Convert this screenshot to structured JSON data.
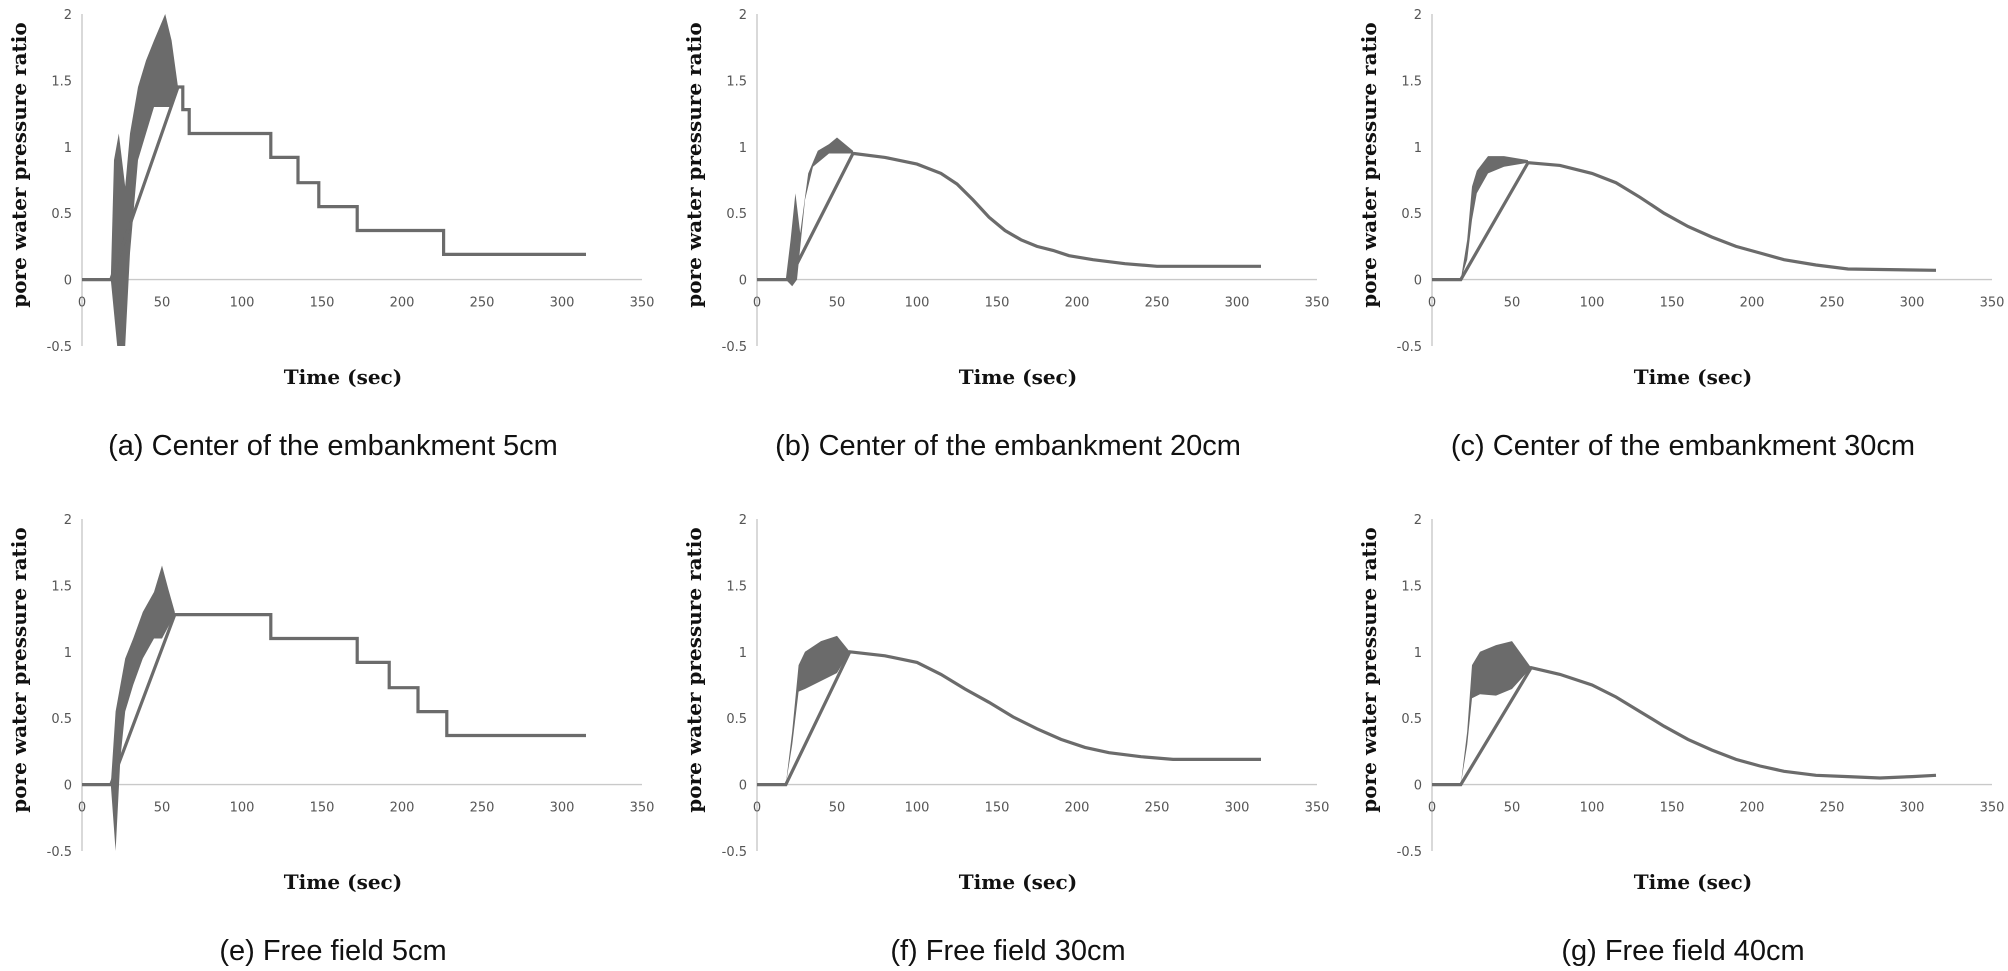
{
  "chart_data": [
    {
      "type": "line",
      "caption": "(a) Center of the embankment 5cm",
      "xlabel": "Time (sec)",
      "ylabel": "pore water pressure ratio",
      "xlim": [
        0,
        350
      ],
      "ylim": [
        -0.5,
        2
      ],
      "xticks": [
        0,
        50,
        100,
        150,
        200,
        250,
        300,
        350
      ],
      "yticks": [
        2,
        1.5,
        1,
        0.5,
        0,
        -0.5
      ],
      "ytick_labels": [
        "2",
        "1.5",
        "1",
        "0.5",
        "0",
        "-0.5"
      ],
      "band": {
        "lower": [
          [
            18,
            0
          ],
          [
            22,
            -0.5
          ],
          [
            27,
            -0.5
          ],
          [
            30,
            0.2
          ],
          [
            35,
            0.9
          ],
          [
            40,
            1.1
          ],
          [
            45,
            1.3
          ],
          [
            55,
            1.3
          ],
          [
            60,
            1.45
          ]
        ],
        "upper": [
          [
            18,
            0
          ],
          [
            20,
            0.9
          ],
          [
            23,
            1.1
          ],
          [
            27,
            0.7
          ],
          [
            30,
            1.1
          ],
          [
            35,
            1.45
          ],
          [
            40,
            1.65
          ],
          [
            45,
            1.8
          ],
          [
            52,
            2.0
          ],
          [
            56,
            1.8
          ],
          [
            60,
            1.45
          ]
        ]
      },
      "series": [
        {
          "values": [
            [
              0,
              0
            ],
            [
              18,
              0
            ],
            [
              60,
              1.45
            ],
            [
              63,
              1.45
            ],
            [
              63,
              1.28
            ],
            [
              67,
              1.28
            ],
            [
              67,
              1.1
            ],
            [
              118,
              1.1
            ],
            [
              118,
              0.92
            ],
            [
              135,
              0.92
            ],
            [
              135,
              0.73
            ],
            [
              148,
              0.73
            ],
            [
              148,
              0.55
            ],
            [
              172,
              0.55
            ],
            [
              172,
              0.37
            ],
            [
              226,
              0.37
            ],
            [
              226,
              0.19
            ],
            [
              315,
              0.19
            ]
          ]
        }
      ]
    },
    {
      "type": "line",
      "caption": "(b) Center of the embankment 20cm",
      "xlabel": "Time (sec)",
      "ylabel": "pore water pressure ratio",
      "xlim": [
        0,
        350
      ],
      "ylim": [
        -0.5,
        2
      ],
      "xticks": [
        0,
        50,
        100,
        150,
        200,
        250,
        300,
        350
      ],
      "yticks": [
        2,
        1.5,
        1,
        0.5,
        0,
        -0.5
      ],
      "ytick_labels": [
        "2",
        "1.5",
        "1",
        "0.5",
        "0",
        "-0.5"
      ],
      "band": {
        "lower": [
          [
            18,
            0
          ],
          [
            22,
            -0.05
          ],
          [
            25,
            0
          ],
          [
            30,
            0.6
          ],
          [
            35,
            0.85
          ],
          [
            45,
            0.95
          ],
          [
            60,
            0.95
          ]
        ],
        "upper": [
          [
            18,
            0
          ],
          [
            21,
            0.3
          ],
          [
            24,
            0.65
          ],
          [
            27,
            0.35
          ],
          [
            32,
            0.8
          ],
          [
            38,
            0.97
          ],
          [
            45,
            1.02
          ],
          [
            50,
            1.07
          ],
          [
            60,
            0.97
          ]
        ]
      },
      "series": [
        {
          "values": [
            [
              0,
              0
            ],
            [
              20,
              0
            ],
            [
              60,
              0.95
            ],
            [
              80,
              0.92
            ],
            [
              100,
              0.87
            ],
            [
              115,
              0.8
            ],
            [
              125,
              0.72
            ],
            [
              135,
              0.6
            ],
            [
              145,
              0.47
            ],
            [
              155,
              0.37
            ],
            [
              165,
              0.3
            ],
            [
              175,
              0.25
            ],
            [
              185,
              0.22
            ],
            [
              195,
              0.18
            ],
            [
              210,
              0.15
            ],
            [
              230,
              0.12
            ],
            [
              250,
              0.1
            ],
            [
              315,
              0.1
            ]
          ]
        }
      ]
    },
    {
      "type": "line",
      "caption": "(c) Center of the  embankment 30cm",
      "xlabel": "Time (sec)",
      "ylabel": "pore water pressure ratio",
      "xlim": [
        0,
        350
      ],
      "ylim": [
        -0.5,
        2
      ],
      "xticks": [
        0,
        50,
        100,
        150,
        200,
        250,
        300,
        350
      ],
      "yticks": [
        2,
        1.5,
        1,
        0.5,
        0,
        -0.5
      ],
      "ytick_labels": [
        "2",
        "1.5",
        "1",
        "0.5",
        "0",
        "-0.5"
      ],
      "band": {
        "lower": [
          [
            18,
            0
          ],
          [
            22,
            0.15
          ],
          [
            25,
            0.45
          ],
          [
            28,
            0.65
          ],
          [
            35,
            0.8
          ],
          [
            45,
            0.85
          ],
          [
            60,
            0.88
          ]
        ],
        "upper": [
          [
            18,
            0
          ],
          [
            22,
            0.3
          ],
          [
            25,
            0.7
          ],
          [
            28,
            0.82
          ],
          [
            35,
            0.93
          ],
          [
            45,
            0.93
          ],
          [
            60,
            0.9
          ]
        ]
      },
      "series": [
        {
          "values": [
            [
              0,
              0
            ],
            [
              18,
              0
            ],
            [
              60,
              0.88
            ],
            [
              80,
              0.86
            ],
            [
              100,
              0.8
            ],
            [
              115,
              0.73
            ],
            [
              130,
              0.62
            ],
            [
              145,
              0.5
            ],
            [
              160,
              0.4
            ],
            [
              175,
              0.32
            ],
            [
              190,
              0.25
            ],
            [
              205,
              0.2
            ],
            [
              220,
              0.15
            ],
            [
              240,
              0.11
            ],
            [
              260,
              0.08
            ],
            [
              315,
              0.07
            ]
          ]
        }
      ]
    },
    {
      "type": "line",
      "caption": "(e) Free field 5cm",
      "xlabel": "Time (sec)",
      "ylabel": "pore water pressure ratio",
      "xlim": [
        0,
        350
      ],
      "ylim": [
        -0.5,
        2
      ],
      "xticks": [
        0,
        50,
        100,
        150,
        200,
        250,
        300,
        350
      ],
      "yticks": [
        2,
        1.5,
        1,
        0.5,
        0,
        -0.5
      ],
      "ytick_labels": [
        "2",
        "1.5",
        "1",
        "0.5",
        "0",
        "-0.5"
      ],
      "band": {
        "lower": [
          [
            18,
            0
          ],
          [
            21,
            -0.5
          ],
          [
            24,
            0.2
          ],
          [
            27,
            0.55
          ],
          [
            32,
            0.75
          ],
          [
            38,
            0.95
          ],
          [
            45,
            1.1
          ],
          [
            50,
            1.1
          ],
          [
            58,
            1.28
          ]
        ],
        "upper": [
          [
            18,
            0
          ],
          [
            21,
            0.55
          ],
          [
            24,
            0.75
          ],
          [
            27,
            0.95
          ],
          [
            32,
            1.1
          ],
          [
            38,
            1.3
          ],
          [
            45,
            1.45
          ],
          [
            50,
            1.65
          ],
          [
            54,
            1.47
          ],
          [
            58,
            1.3
          ]
        ]
      },
      "series": [
        {
          "values": [
            [
              0,
              0
            ],
            [
              18,
              0
            ],
            [
              58,
              1.28
            ],
            [
              118,
              1.28
            ],
            [
              118,
              1.1
            ],
            [
              172,
              1.1
            ],
            [
              172,
              0.92
            ],
            [
              192,
              0.92
            ],
            [
              192,
              0.73
            ],
            [
              210,
              0.73
            ],
            [
              210,
              0.55
            ],
            [
              228,
              0.55
            ],
            [
              228,
              0.37
            ],
            [
              315,
              0.37
            ]
          ]
        }
      ]
    },
    {
      "type": "line",
      "caption": "(f) Free field 30cm",
      "xlabel": "Time (sec)",
      "ylabel": "pore water pressure ratio",
      "xlim": [
        0,
        350
      ],
      "ylim": [
        -0.5,
        2
      ],
      "xticks": [
        0,
        50,
        100,
        150,
        200,
        250,
        300,
        350
      ],
      "yticks": [
        2,
        1.5,
        1,
        0.5,
        0,
        -0.5
      ],
      "ytick_labels": [
        "2",
        "1.5",
        "1",
        "0.5",
        "0",
        "-0.5"
      ],
      "band": {
        "lower": [
          [
            18,
            0
          ],
          [
            22,
            0.3
          ],
          [
            26,
            0.7
          ],
          [
            30,
            0.72
          ],
          [
            40,
            0.78
          ],
          [
            50,
            0.84
          ],
          [
            58,
            1.0
          ]
        ],
        "upper": [
          [
            18,
            0
          ],
          [
            22,
            0.4
          ],
          [
            26,
            0.9
          ],
          [
            30,
            1.0
          ],
          [
            40,
            1.08
          ],
          [
            50,
            1.12
          ],
          [
            58,
            1.0
          ]
        ]
      },
      "series": [
        {
          "values": [
            [
              0,
              0
            ],
            [
              18,
              0
            ],
            [
              58,
              1.0
            ],
            [
              80,
              0.97
            ],
            [
              100,
              0.92
            ],
            [
              115,
              0.83
            ],
            [
              130,
              0.72
            ],
            [
              145,
              0.62
            ],
            [
              160,
              0.51
            ],
            [
              175,
              0.42
            ],
            [
              190,
              0.34
            ],
            [
              205,
              0.28
            ],
            [
              220,
              0.24
            ],
            [
              240,
              0.21
            ],
            [
              260,
              0.19
            ],
            [
              315,
              0.19
            ]
          ]
        }
      ]
    },
    {
      "type": "line",
      "caption": "(g) Free field 40cm",
      "xlabel": "Time (sec)",
      "ylabel": "pore water pressure ratio",
      "xlim": [
        0,
        350
      ],
      "ylim": [
        -0.5,
        2
      ],
      "xticks": [
        0,
        50,
        100,
        150,
        200,
        250,
        300,
        350
      ],
      "yticks": [
        2,
        1.5,
        1,
        0.5,
        0,
        -0.5
      ],
      "ytick_labels": [
        "2",
        "1.5",
        "1",
        "0.5",
        "0",
        "-0.5"
      ],
      "band": {
        "lower": [
          [
            18,
            0
          ],
          [
            22,
            0.3
          ],
          [
            25,
            0.65
          ],
          [
            30,
            0.68
          ],
          [
            40,
            0.67
          ],
          [
            50,
            0.72
          ],
          [
            62,
            0.88
          ]
        ],
        "upper": [
          [
            18,
            0
          ],
          [
            22,
            0.4
          ],
          [
            25,
            0.9
          ],
          [
            30,
            1.0
          ],
          [
            40,
            1.05
          ],
          [
            50,
            1.08
          ],
          [
            62,
            0.88
          ]
        ]
      },
      "series": [
        {
          "values": [
            [
              0,
              0
            ],
            [
              18,
              0
            ],
            [
              62,
              0.88
            ],
            [
              80,
              0.83
            ],
            [
              100,
              0.75
            ],
            [
              115,
              0.66
            ],
            [
              130,
              0.55
            ],
            [
              145,
              0.44
            ],
            [
              160,
              0.34
            ],
            [
              175,
              0.26
            ],
            [
              190,
              0.19
            ],
            [
              205,
              0.14
            ],
            [
              220,
              0.1
            ],
            [
              240,
              0.07
            ],
            [
              260,
              0.06
            ],
            [
              280,
              0.05
            ],
            [
              300,
              0.06
            ],
            [
              315,
              0.07
            ]
          ]
        }
      ]
    }
  ]
}
